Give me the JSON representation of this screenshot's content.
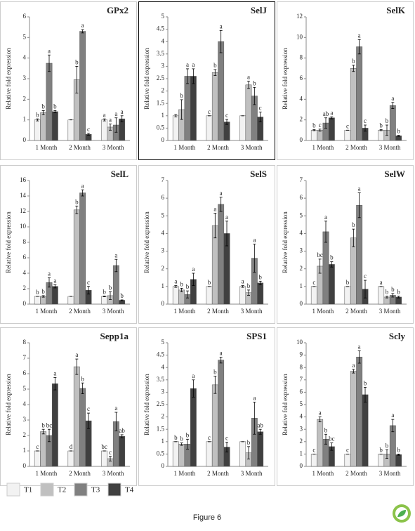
{
  "legend": [
    {
      "name": "T1",
      "color": "#f2f2f2"
    },
    {
      "name": "T2",
      "color": "#c0c0c0"
    },
    {
      "name": "T3",
      "color": "#808080"
    },
    {
      "name": "T4",
      "color": "#404040"
    }
  ],
  "caption": "Figure 6",
  "chart_data": [
    {
      "type": "bar",
      "title": "GPx2",
      "ylabel": "Relative fold expression",
      "border_color": "#cccccc",
      "categories": [
        "1 Month",
        "2 Month",
        "3 Month"
      ],
      "ylim": [
        0,
        6
      ],
      "yticks": [
        0,
        1,
        2,
        3,
        4,
        5,
        6
      ],
      "series": [
        {
          "values": [
            1.0,
            1.0,
            1.0
          ],
          "errors": [
            0.05,
            0,
            0.05
          ],
          "letters": [
            "b",
            null,
            "a"
          ]
        },
        {
          "values": [
            1.35,
            2.95,
            0.65
          ],
          "errors": [
            0.1,
            0.65,
            0.15
          ],
          "letters": [
            "b",
            "b",
            "a"
          ]
        },
        {
          "values": [
            3.75,
            5.3,
            0.75
          ],
          "errors": [
            0.4,
            0.08,
            0.35
          ],
          "letters": [
            "a",
            "a",
            "a"
          ]
        },
        {
          "values": [
            1.4,
            0.3,
            1.05
          ],
          "errors": [
            0.05,
            0.05,
            0.15
          ],
          "letters": [
            "b",
            "c",
            "a"
          ]
        }
      ]
    },
    {
      "type": "bar",
      "title": "SelJ",
      "ylabel": "Relative fold expression",
      "border_color": "#000000",
      "categories": [
        "1 Month",
        "2 Month",
        "3 Month"
      ],
      "ylim": [
        0,
        5
      ],
      "yticks": [
        0,
        0.5,
        1,
        1.5,
        2,
        2.5,
        3,
        3.5,
        4,
        4.5,
        5
      ],
      "series": [
        {
          "values": [
            1.0,
            1.0,
            1.0
          ],
          "errors": [
            0.05,
            0,
            0
          ],
          "letters": [
            null,
            "c",
            null
          ]
        },
        {
          "values": [
            1.25,
            2.75,
            2.25
          ],
          "errors": [
            0.4,
            0.12,
            0.15
          ],
          "letters": [
            "b",
            "b",
            "a"
          ]
        },
        {
          "values": [
            2.6,
            4.0,
            1.8
          ],
          "errors": [
            0.3,
            0.45,
            0.35
          ],
          "letters": [
            "a",
            "a",
            "b"
          ]
        },
        {
          "values": [
            2.6,
            0.75,
            0.95
          ],
          "errors": [
            0.3,
            0.1,
            0.2
          ],
          "letters": [
            "a",
            "c",
            "c"
          ]
        }
      ]
    },
    {
      "type": "bar",
      "title": "SelK",
      "ylabel": "Relative fold expression",
      "border_color": "#cccccc",
      "categories": [
        "1 Month",
        "2 Month",
        "3 Month"
      ],
      "ylim": [
        0,
        12
      ],
      "yticks": [
        0,
        2,
        4,
        6,
        8,
        10,
        12
      ],
      "series": [
        {
          "values": [
            1.0,
            1.0,
            1.0
          ],
          "errors": [
            0.05,
            0,
            0.05
          ],
          "letters": [
            "b",
            "c",
            "b"
          ]
        },
        {
          "values": [
            1.0,
            7.0,
            1.0
          ],
          "errors": [
            0.1,
            0.3,
            0.5
          ],
          "letters": [
            "c",
            "b",
            "b"
          ]
        },
        {
          "values": [
            1.7,
            9.1,
            3.4
          ],
          "errors": [
            0.5,
            0.7,
            0.3
          ],
          "letters": [
            "ab",
            "a",
            "a"
          ]
        },
        {
          "values": [
            2.2,
            1.2,
            0.45
          ],
          "errors": [
            0.1,
            0.3,
            0.05
          ],
          "letters": [
            "a",
            "c",
            "b"
          ]
        }
      ]
    },
    {
      "type": "bar",
      "title": "SelL",
      "ylabel": "Relative fold expression",
      "border_color": "#cccccc",
      "categories": [
        "1 Month",
        "2 Month",
        "3 Month"
      ],
      "ylim": [
        0,
        16
      ],
      "yticks": [
        0,
        2,
        4,
        6,
        8,
        10,
        12,
        14,
        16
      ],
      "series": [
        {
          "values": [
            1.0,
            1.0,
            1.0
          ],
          "errors": [
            0,
            0,
            0.05
          ],
          "letters": [
            "b",
            null,
            "b"
          ]
        },
        {
          "values": [
            1.0,
            12.2,
            1.1
          ],
          "errors": [
            0.1,
            0.5,
            0.5
          ],
          "letters": [
            "b",
            "b",
            "b"
          ]
        },
        {
          "values": [
            2.8,
            14.4,
            5.0
          ],
          "errors": [
            0.6,
            0.4,
            0.8
          ],
          "letters": [
            "a",
            "a",
            "a"
          ]
        },
        {
          "values": [
            2.3,
            1.8,
            0.5
          ],
          "errors": [
            0.2,
            0.5,
            0.05
          ],
          "letters": [
            "a",
            "c",
            "b"
          ]
        }
      ]
    },
    {
      "type": "bar",
      "title": "SelS",
      "ylabel": "Relative fold expression",
      "border_color": "#cccccc",
      "categories": [
        "1 Month",
        "2 Month",
        "3 Month"
      ],
      "ylim": [
        0,
        7
      ],
      "yticks": [
        0,
        1,
        2,
        3,
        4,
        5,
        6,
        7
      ],
      "series": [
        {
          "values": [
            1.0,
            1.0,
            1.0
          ],
          "errors": [
            0.05,
            0,
            0.05
          ],
          "letters": [
            "a",
            "b",
            "a"
          ]
        },
        {
          "values": [
            0.8,
            4.45,
            0.65
          ],
          "errors": [
            0.1,
            0.7,
            0.15
          ],
          "letters": [
            "b",
            "a",
            "b"
          ]
        },
        {
          "values": [
            0.55,
            5.65,
            2.6
          ],
          "errors": [
            0.2,
            0.4,
            0.8
          ],
          "letters": [
            "b",
            "a",
            "a"
          ]
        },
        {
          "values": [
            1.4,
            4.0,
            1.2
          ],
          "errors": [
            0.35,
            0.7,
            0.1
          ],
          "letters": [
            "a",
            "a",
            "b"
          ]
        }
      ]
    },
    {
      "type": "bar",
      "title": "SelW",
      "ylabel": "Relative fold expression",
      "border_color": "#cccccc",
      "categories": [
        "1 Month",
        "2 Month",
        "3 Month"
      ],
      "ylim": [
        0,
        7
      ],
      "yticks": [
        0,
        1,
        2,
        3,
        4,
        5,
        6,
        7
      ],
      "series": [
        {
          "values": [
            1.0,
            1.0,
            1.0
          ],
          "errors": [
            0,
            0,
            0
          ],
          "letters": [
            "c",
            "b",
            "a"
          ]
        },
        {
          "values": [
            2.15,
            3.75,
            0.4
          ],
          "errors": [
            0.4,
            0.5,
            0.05
          ],
          "letters": [
            "bc",
            "b",
            "b"
          ]
        },
        {
          "values": [
            4.1,
            5.6,
            0.5
          ],
          "errors": [
            0.6,
            0.7,
            0.1
          ],
          "letters": [
            "a",
            "a",
            "b"
          ]
        },
        {
          "values": [
            2.25,
            0.85,
            0.4
          ],
          "errors": [
            0.15,
            0.5,
            0.05
          ],
          "letters": [
            "b",
            "c",
            "b"
          ]
        }
      ]
    },
    {
      "type": "bar",
      "title": "Sepp1a",
      "ylabel": "Relative fold expression",
      "border_color": "#cccccc",
      "categories": [
        "1 Month",
        "2 Month",
        "3 Month"
      ],
      "ylim": [
        0,
        8
      ],
      "yticks": [
        0,
        1,
        2,
        3,
        4,
        5,
        6,
        7,
        8
      ],
      "series": [
        {
          "values": [
            1.0,
            1.0,
            1.0
          ],
          "errors": [
            0,
            0,
            0
          ],
          "letters": [
            "c",
            "d",
            "bc"
          ]
        },
        {
          "values": [
            2.25,
            6.45,
            0.5
          ],
          "errors": [
            0.15,
            0.5,
            0.15
          ],
          "letters": [
            "b",
            "a",
            "c"
          ]
        },
        {
          "values": [
            2.0,
            5.05,
            2.9
          ],
          "errors": [
            0.4,
            0.35,
            0.6
          ],
          "letters": [
            "bc",
            "b",
            "a"
          ]
        },
        {
          "values": [
            5.35,
            2.95,
            1.95
          ],
          "errors": [
            0.4,
            0.5,
            0.1
          ],
          "letters": [
            "a",
            "c",
            "ab"
          ]
        }
      ]
    },
    {
      "type": "bar",
      "title": "SPS1",
      "ylabel": "Relative fold expression",
      "border_color": "#cccccc",
      "categories": [
        "1 Month",
        "2 Month",
        "3 Month"
      ],
      "ylim": [
        0,
        5
      ],
      "yticks": [
        0,
        0.5,
        1,
        1.5,
        2,
        2.5,
        3,
        3.5,
        4,
        4.5,
        5
      ],
      "series": [
        {
          "values": [
            1.0,
            1.0,
            1.0
          ],
          "errors": [
            0,
            0,
            0
          ],
          "letters": [
            "b",
            "c",
            null
          ]
        },
        {
          "values": [
            0.9,
            3.3,
            0.55
          ],
          "errors": [
            0.05,
            0.35,
            0.25
          ],
          "letters": [
            "b",
            "b",
            "b"
          ]
        },
        {
          "values": [
            0.9,
            4.3,
            1.95
          ],
          "errors": [
            0.2,
            0.12,
            0.65
          ],
          "letters": [
            "b",
            "a",
            "a"
          ]
        },
        {
          "values": [
            3.15,
            0.78,
            1.4
          ],
          "errors": [
            0.35,
            0.2,
            0.1
          ],
          "letters": [
            "a",
            "c",
            "ab"
          ]
        }
      ]
    },
    {
      "type": "bar",
      "title": "Scly",
      "ylabel": "Relative fold expression",
      "border_color": "#cccccc",
      "categories": [
        "1 Month",
        "2 Month",
        "3 Month"
      ],
      "ylim": [
        0,
        10
      ],
      "yticks": [
        0,
        1,
        2,
        3,
        4,
        5,
        6,
        7,
        8,
        9,
        10
      ],
      "series": [
        {
          "values": [
            1.0,
            1.0,
            1.0
          ],
          "errors": [
            0,
            0,
            0
          ],
          "letters": [
            "c",
            "c",
            "b"
          ]
        },
        {
          "values": [
            3.8,
            7.7,
            1.0
          ],
          "errors": [
            0.2,
            0.15,
            0.35
          ],
          "letters": [
            "a",
            "a",
            "b"
          ]
        },
        {
          "values": [
            2.2,
            8.85,
            3.3
          ],
          "errors": [
            0.4,
            0.5,
            0.5
          ],
          "letters": [
            "b",
            "a",
            "a"
          ]
        },
        {
          "values": [
            1.6,
            5.8,
            0.95
          ],
          "errors": [
            0.3,
            0.6,
            0.05
          ],
          "letters": [
            "bc",
            "b",
            "b"
          ]
        }
      ]
    }
  ]
}
